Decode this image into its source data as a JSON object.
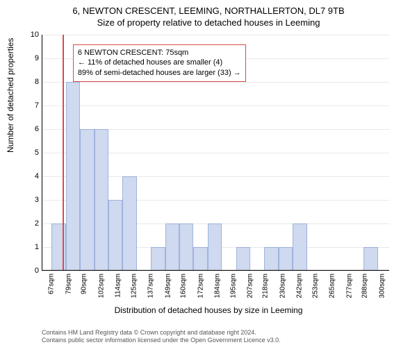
{
  "title_line1": "6, NEWTON CRESCENT, LEEMING, NORTHALLERTON, DL7 9TB",
  "title_line2": "Size of property relative to detached houses in Leeming",
  "y_label": "Number of detached properties",
  "x_label": "Distribution of detached houses by size in Leeming",
  "chart": {
    "type": "histogram",
    "ylim": [
      0,
      10
    ],
    "ytick_step": 1,
    "bar_color": "#cfd9ef",
    "bar_border": "#9fb3dd",
    "grid_color": "#e8e8e8",
    "marker_color": "#d94a4a",
    "marker_x_value": 75,
    "x_min": 60,
    "x_max": 305,
    "x_ticks": [
      67,
      79,
      90,
      102,
      114,
      125,
      137,
      149,
      160,
      172,
      184,
      195,
      207,
      218,
      230,
      242,
      253,
      265,
      277,
      288,
      300
    ],
    "x_tick_suffix": "sqm",
    "bar_width_units": 10,
    "bars": [
      {
        "x": 67,
        "y": 2
      },
      {
        "x": 77,
        "y": 8
      },
      {
        "x": 87,
        "y": 6
      },
      {
        "x": 97,
        "y": 6
      },
      {
        "x": 107,
        "y": 3
      },
      {
        "x": 117,
        "y": 4
      },
      {
        "x": 137,
        "y": 1
      },
      {
        "x": 147,
        "y": 2
      },
      {
        "x": 157,
        "y": 2
      },
      {
        "x": 167,
        "y": 1
      },
      {
        "x": 177,
        "y": 2
      },
      {
        "x": 197,
        "y": 1
      },
      {
        "x": 217,
        "y": 1
      },
      {
        "x": 227,
        "y": 1
      },
      {
        "x": 237,
        "y": 2
      },
      {
        "x": 287,
        "y": 1
      }
    ]
  },
  "annotation": {
    "border_color": "#d94a4a",
    "line1": "6 NEWTON CRESCENT: 75sqm",
    "line2": "← 11% of detached houses are smaller (4)",
    "line3": "89% of semi-detached houses are larger (33) →"
  },
  "footer_line1": "Contains HM Land Registry data © Crown copyright and database right 2024.",
  "footer_line2": "Contains public sector information licensed under the Open Government Licence v3.0."
}
